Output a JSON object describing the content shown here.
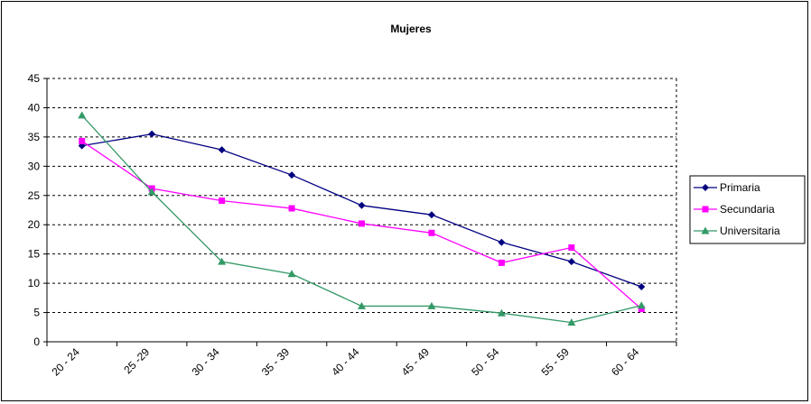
{
  "chart_data": {
    "type": "line",
    "title": "Mujeres",
    "xlabel": "",
    "ylabel": "",
    "categories": [
      "20 - 24",
      "25 -29",
      "30 - 34",
      "35 - 39",
      "40 - 44",
      "45 - 49",
      "50 - 54",
      "55 - 59",
      "60 - 64"
    ],
    "ylim": [
      0,
      45
    ],
    "yticks": [
      0,
      5,
      10,
      15,
      20,
      25,
      30,
      35,
      40,
      45
    ],
    "grid": "horizontal dashed",
    "legend_position": "right",
    "series": [
      {
        "name": "Primaria",
        "color": "#000080",
        "marker": "diamond",
        "values": [
          33.5,
          35.5,
          32.8,
          28.5,
          23.3,
          21.7,
          17.0,
          13.7,
          9.4
        ]
      },
      {
        "name": "Secundaria",
        "color": "#ff00ff",
        "marker": "square",
        "values": [
          34.3,
          26.2,
          24.1,
          22.8,
          20.2,
          18.6,
          13.5,
          16.1,
          5.6
        ]
      },
      {
        "name": "Universitaria",
        "color": "#339966",
        "marker": "triangle",
        "values": [
          38.7,
          25.6,
          13.7,
          11.6,
          6.1,
          6.1,
          4.9,
          3.3,
          6.2
        ]
      }
    ]
  }
}
